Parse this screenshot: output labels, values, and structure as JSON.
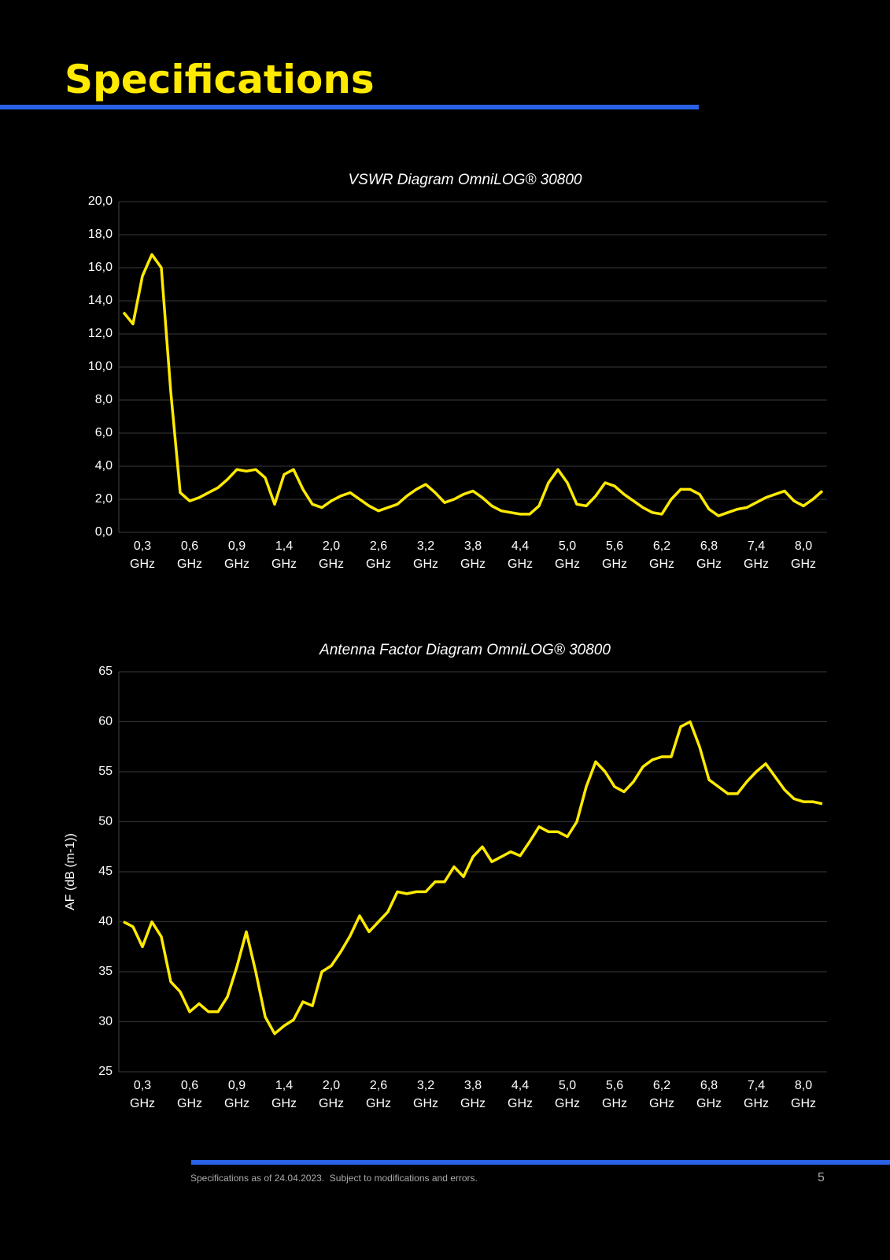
{
  "header": {
    "title": "Specifications"
  },
  "chart_data": [
    {
      "type": "line",
      "title": "VSWR Diagram OmniLOG® 30800",
      "color": "#ffea00",
      "grid": true,
      "categories": [
        null,
        null,
        "0,3 GHz",
        null,
        null,
        null,
        null,
        "0,6 GHz",
        null,
        null,
        null,
        null,
        "0,9 GHz",
        null,
        null,
        null,
        null,
        "1,4 GHz",
        null,
        null,
        null,
        null,
        "2,0 GHz",
        null,
        null,
        null,
        null,
        "2,6 GHz",
        null,
        null,
        null,
        null,
        "3,2 GHz",
        null,
        null,
        null,
        null,
        "3,8 GHz",
        null,
        null,
        null,
        null,
        "4,4 GHz",
        null,
        null,
        null,
        null,
        "5,0 GHz",
        null,
        null,
        null,
        null,
        "5,6 GHz",
        null,
        null,
        null,
        null,
        "6,2 GHz",
        null,
        null,
        null,
        null,
        "6,8 GHz",
        null,
        null,
        null,
        null,
        "7,4 GHz",
        null,
        null,
        null,
        null,
        "8,0 GHz",
        null,
        null
      ],
      "values": [
        13.3,
        12.6,
        15.5,
        16.8,
        16.0,
        8.5,
        2.4,
        1.9,
        2.1,
        2.4,
        2.7,
        3.2,
        3.8,
        3.7,
        3.8,
        3.3,
        1.7,
        3.5,
        3.8,
        2.6,
        1.7,
        1.5,
        1.9,
        2.2,
        2.4,
        2.0,
        1.6,
        1.3,
        1.5,
        1.7,
        2.2,
        2.6,
        2.9,
        2.4,
        1.8,
        2.0,
        2.3,
        2.5,
        2.1,
        1.6,
        1.3,
        1.2,
        1.1,
        1.1,
        1.6,
        3.0,
        3.8,
        3.0,
        1.7,
        1.6,
        2.2,
        3.0,
        2.8,
        2.3,
        1.9,
        1.5,
        1.2,
        1.1,
        2.0,
        2.6,
        2.6,
        2.3,
        1.4,
        1.0,
        1.2,
        1.4,
        1.5,
        1.8,
        2.1,
        2.3,
        2.5,
        1.9,
        1.6,
        2.0,
        2.5
      ],
      "ylim": [
        0,
        20
      ],
      "yticks": [
        {
          "value": 0,
          "label": "0,0"
        },
        {
          "value": 2,
          "label": "2,0"
        },
        {
          "value": 4,
          "label": "4,0"
        },
        {
          "value": 6,
          "label": "6,0"
        },
        {
          "value": 8,
          "label": "8,0"
        },
        {
          "value": 10,
          "label": "10,0"
        },
        {
          "value": 12,
          "label": "12,0"
        },
        {
          "value": 14,
          "label": "14,0"
        },
        {
          "value": 16,
          "label": "16,0"
        },
        {
          "value": 18,
          "label": "18,0"
        },
        {
          "value": 20,
          "label": "20,0"
        }
      ]
    },
    {
      "type": "line",
      "title": "Antenna Factor Diagram OmniLOG® 30800",
      "y_label": "AF (dB (m-1))",
      "color": "#ffea00",
      "grid": true,
      "categories": [
        null,
        null,
        "0,3 GHz",
        null,
        null,
        null,
        null,
        "0,6 GHz",
        null,
        null,
        null,
        null,
        "0,9 GHz",
        null,
        null,
        null,
        null,
        "1,4 GHz",
        null,
        null,
        null,
        null,
        "2,0 GHz",
        null,
        null,
        null,
        null,
        "2,6 GHz",
        null,
        null,
        null,
        null,
        "3,2 GHz",
        null,
        null,
        null,
        null,
        "3,8 GHz",
        null,
        null,
        null,
        null,
        "4,4 GHz",
        null,
        null,
        null,
        null,
        "5,0 GHz",
        null,
        null,
        null,
        null,
        "5,6 GHz",
        null,
        null,
        null,
        null,
        "6,2 GHz",
        null,
        null,
        null,
        null,
        "6,8 GHz",
        null,
        null,
        null,
        null,
        "7,4 GHz",
        null,
        null,
        null,
        null,
        "8,0 GHz",
        null,
        null
      ],
      "values": [
        40,
        39.5,
        37.5,
        40,
        38.5,
        34,
        33,
        31,
        31.8,
        31,
        31,
        32.5,
        35.5,
        39,
        35,
        30.5,
        28.8,
        29.6,
        30.2,
        32,
        31.6,
        35,
        35.6,
        37,
        38.6,
        40.6,
        39,
        40,
        41,
        43,
        42.8,
        43,
        43,
        44,
        44,
        45.5,
        44.5,
        46.5,
        47.5,
        46,
        46.5,
        47,
        46.6,
        48,
        49.5,
        49,
        49,
        48.5,
        50,
        53.5,
        56,
        55,
        53.5,
        53,
        54,
        55.5,
        56.2,
        56.5,
        56.5,
        59.5,
        60,
        57.5,
        54.2,
        53.5,
        52.8,
        52.8,
        54,
        55,
        55.8,
        54.5,
        53.2,
        52.3,
        52,
        52,
        51.8
      ],
      "ylim": [
        25,
        65
      ],
      "yticks": [
        25,
        30,
        35,
        40,
        45,
        50,
        55,
        60,
        65
      ]
    }
  ],
  "footer": {
    "note": "Specifications as of 24.04.2023.  Subject to modifications and errors.",
    "page": 5
  }
}
